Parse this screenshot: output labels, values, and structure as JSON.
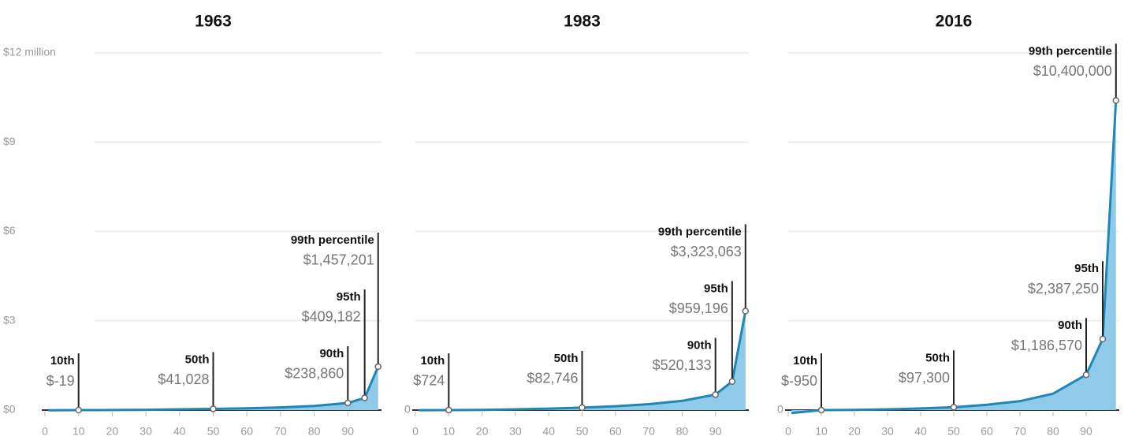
{
  "chart_data": [
    {
      "type": "area",
      "title": "1963",
      "x": [
        1,
        10,
        20,
        30,
        40,
        50,
        60,
        70,
        80,
        90,
        95,
        99
      ],
      "values": [
        -0.005,
        -1.9e-05,
        0.002,
        0.01,
        0.025,
        0.041028,
        0.06,
        0.09,
        0.14,
        0.23886,
        0.409182,
        1.457201
      ],
      "value_labels": [
        null,
        "$-19",
        null,
        null,
        null,
        "$41,028",
        null,
        null,
        null,
        "$238,860",
        "$409,182",
        "$1,457,201"
      ],
      "point_labels": [
        null,
        "10th",
        null,
        null,
        null,
        "50th",
        null,
        null,
        null,
        "90th",
        "95th",
        "99th percentile"
      ],
      "xlim": [
        0,
        100
      ],
      "xticks": [
        0,
        10,
        20,
        30,
        40,
        50,
        60,
        70,
        80,
        90
      ],
      "ylim": [
        0,
        12
      ],
      "y_labels": "all",
      "yticks": [
        {
          "value": 0,
          "label": "$0"
        },
        {
          "value": 3,
          "label": "$3"
        },
        {
          "value": 6,
          "label": "$6"
        },
        {
          "value": 9,
          "label": "$9"
        },
        {
          "value": 12,
          "label": "$12 million"
        }
      ],
      "grid": true,
      "color": "#1f86b8",
      "fill_color": "#8fcbe8"
    },
    {
      "type": "area",
      "title": "1983",
      "x": [
        1,
        10,
        20,
        30,
        40,
        50,
        60,
        70,
        80,
        90,
        95,
        99
      ],
      "values": [
        -0.003,
        0.000724,
        0.008,
        0.025,
        0.05,
        0.082746,
        0.13,
        0.2,
        0.31,
        0.520133,
        0.959196,
        3.323063
      ],
      "value_labels": [
        null,
        "$724",
        null,
        null,
        null,
        "$82,746",
        null,
        null,
        null,
        "$520,133",
        "$959,196",
        "$3,323,063"
      ],
      "point_labels": [
        null,
        "10th",
        null,
        null,
        null,
        "50th",
        null,
        null,
        null,
        "90th",
        "95th",
        "99th percentile"
      ],
      "xlim": [
        0,
        100
      ],
      "xticks": [
        0,
        10,
        20,
        30,
        40,
        50,
        60,
        70,
        80,
        90
      ],
      "ylim": [
        0,
        12
      ],
      "y_labels": "baseline",
      "yticks": [
        0,
        3,
        6,
        9,
        12
      ],
      "grid": true,
      "color": "#1f86b8",
      "fill_color": "#8fcbe8"
    },
    {
      "type": "area",
      "title": "2016",
      "x": [
        1,
        10,
        20,
        30,
        40,
        50,
        60,
        70,
        80,
        90,
        95,
        99
      ],
      "values": [
        -0.1,
        -0.00095,
        0.006,
        0.025,
        0.055,
        0.0973,
        0.18,
        0.3,
        0.55,
        1.18657,
        2.38725,
        10.4
      ],
      "value_labels": [
        null,
        "$-950",
        null,
        null,
        null,
        "$97,300",
        null,
        null,
        null,
        "$1,186,570",
        "$2,387,250",
        "$10,400,000"
      ],
      "point_labels": [
        null,
        "10th",
        null,
        null,
        null,
        "50th",
        null,
        null,
        null,
        "90th",
        "95th",
        "99th percentile"
      ],
      "xlim": [
        0,
        100
      ],
      "xticks": [
        0,
        10,
        20,
        30,
        40,
        50,
        60,
        70,
        80,
        90
      ],
      "ylim": [
        0,
        12
      ],
      "y_labels": "baseline",
      "yticks": [
        0,
        3,
        6,
        9,
        12
      ],
      "grid": true,
      "color": "#1f86b8",
      "fill_color": "#8fcbe8"
    }
  ]
}
